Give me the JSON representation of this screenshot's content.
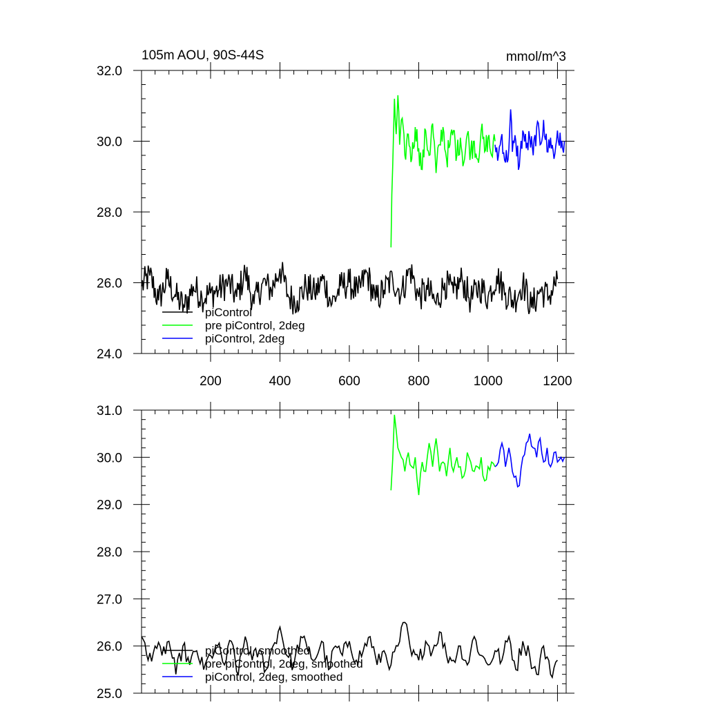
{
  "chart_data": [
    {
      "type": "line",
      "title": "105m AOU, 90S-44S",
      "units": "mmol/m^3",
      "xlabel": "",
      "ylabel": "",
      "xlim": [
        1,
        1225
      ],
      "ylim": [
        24.0,
        32.0
      ],
      "xticks": [
        200,
        400,
        600,
        800,
        1000,
        1200
      ],
      "xtick_labels": [
        "200",
        "400",
        "600",
        "800",
        "1000",
        "1200"
      ],
      "yticks": [
        24.0,
        26.0,
        28.0,
        30.0,
        32.0
      ],
      "ytick_labels": [
        "24.0",
        "26.0",
        "28.0",
        "30.0",
        "32.0"
      ],
      "legend_position": "bottom-left",
      "series": [
        {
          "name": "piControl",
          "color": "#000000",
          "x": [
            1,
            25,
            50,
            75,
            100,
            125,
            150,
            175,
            200,
            225,
            250,
            275,
            300,
            325,
            350,
            375,
            400,
            425,
            450,
            475,
            500,
            525,
            550,
            575,
            600,
            625,
            650,
            675,
            700,
            725,
            750,
            775,
            800,
            825,
            850,
            875,
            900,
            925,
            950,
            975,
            1000,
            1025,
            1050,
            1075,
            1100,
            1125,
            1150,
            1175,
            1200
          ],
          "values": [
            25.9,
            26.2,
            25.5,
            26.1,
            25.6,
            25.3,
            25.9,
            25.6,
            25.7,
            25.8,
            26.0,
            25.6,
            26.3,
            25.4,
            26.0,
            25.8,
            26.4,
            25.6,
            25.5,
            25.9,
            25.7,
            26.1,
            25.4,
            25.9,
            26.0,
            25.7,
            26.3,
            25.5,
            25.8,
            26.1,
            25.7,
            26.4,
            25.6,
            25.8,
            25.4,
            26.0,
            25.7,
            26.1,
            25.5,
            25.9,
            25.6,
            26.2,
            25.7,
            25.5,
            26.0,
            25.3,
            25.8,
            25.6,
            26.1
          ]
        },
        {
          "name": "pre piControl, 2deg",
          "color": "#00ff00",
          "x": [
            720,
            725,
            730,
            735,
            740,
            745,
            750,
            760,
            770,
            780,
            790,
            800,
            810,
            820,
            830,
            840,
            850,
            860,
            870,
            880,
            890,
            900,
            910,
            920,
            930,
            940,
            950,
            960,
            970,
            980,
            990,
            1000,
            1010,
            1020
          ],
          "values": [
            27.0,
            29.3,
            31.2,
            30.2,
            31.3,
            29.9,
            30.6,
            29.6,
            30.2,
            29.5,
            30.4,
            29.8,
            29.2,
            30.3,
            29.6,
            30.5,
            29.1,
            29.9,
            30.4,
            29.5,
            29.9,
            30.3,
            29.6,
            30.1,
            29.4,
            30.2,
            29.7,
            30.0,
            29.5,
            30.3,
            29.7,
            30.1,
            29.6,
            30.0
          ]
        },
        {
          "name": "piControl, 2deg",
          "color": "#0000ff",
          "x": [
            1020,
            1030,
            1040,
            1050,
            1060,
            1065,
            1070,
            1080,
            1090,
            1100,
            1110,
            1120,
            1130,
            1140,
            1150,
            1160,
            1170,
            1180,
            1190,
            1200,
            1210,
            1220
          ],
          "values": [
            29.9,
            29.6,
            30.2,
            29.4,
            29.8,
            30.9,
            29.7,
            30.0,
            29.3,
            30.3,
            29.8,
            30.1,
            29.6,
            30.4,
            29.9,
            30.6,
            29.7,
            30.1,
            29.5,
            30.3,
            29.8,
            30.0
          ]
        }
      ]
    },
    {
      "type": "line",
      "title": "",
      "xlabel": "",
      "ylabel": "",
      "xlim": [
        1,
        1225
      ],
      "ylim": [
        25.0,
        31.0
      ],
      "xticks": [
        200,
        400,
        600,
        800,
        1000,
        1200
      ],
      "yticks": [
        25.0,
        26.0,
        27.0,
        28.0,
        29.0,
        30.0,
        31.0
      ],
      "ytick_labels": [
        "25.0",
        "26.0",
        "27.0",
        "28.0",
        "29.0",
        "30.0",
        "31.0"
      ],
      "legend_position": "bottom-left",
      "series": [
        {
          "name": "piControl, smoothed",
          "color": "#000000",
          "x": [
            1,
            20,
            40,
            60,
            80,
            100,
            120,
            140,
            160,
            180,
            200,
            220,
            240,
            260,
            280,
            300,
            320,
            340,
            360,
            380,
            400,
            420,
            440,
            460,
            480,
            500,
            520,
            540,
            560,
            580,
            600,
            620,
            640,
            660,
            680,
            700,
            720,
            740,
            760,
            780,
            800,
            820,
            840,
            860,
            880,
            900,
            920,
            940,
            960,
            980,
            1000,
            1020,
            1040,
            1060,
            1080,
            1100,
            1120,
            1140,
            1160,
            1180,
            1200
          ],
          "values": [
            26.2,
            25.7,
            26.0,
            25.8,
            26.1,
            25.4,
            26.0,
            25.6,
            25.9,
            25.5,
            25.8,
            26.0,
            25.6,
            26.1,
            25.4,
            26.2,
            25.7,
            25.9,
            25.5,
            26.0,
            26.4,
            25.8,
            25.6,
            26.2,
            25.9,
            25.7,
            26.1,
            25.5,
            26.0,
            25.8,
            26.1,
            25.7,
            25.9,
            26.2,
            25.6,
            25.9,
            25.6,
            26.0,
            26.5,
            25.8,
            25.7,
            26.1,
            25.9,
            26.3,
            25.8,
            25.7,
            26.0,
            25.6,
            26.2,
            25.8,
            25.6,
            25.9,
            25.7,
            26.2,
            25.5,
            26.1,
            25.8,
            25.4,
            26.0,
            25.4,
            25.7
          ]
        },
        {
          "name": "pre piControl, 2deg, smoothed",
          "color": "#00ff00",
          "x": [
            720,
            730,
            740,
            750,
            760,
            770,
            780,
            790,
            800,
            810,
            820,
            830,
            840,
            850,
            860,
            870,
            880,
            890,
            900,
            910,
            920,
            930,
            940,
            950,
            960,
            970,
            980,
            990,
            1000,
            1010,
            1020
          ],
          "values": [
            29.3,
            30.9,
            30.2,
            30.0,
            29.7,
            30.1,
            29.8,
            30.0,
            29.2,
            29.9,
            29.7,
            30.3,
            29.8,
            30.4,
            29.7,
            29.9,
            29.6,
            30.2,
            29.7,
            30.0,
            29.8,
            29.6,
            30.1,
            29.9,
            29.7,
            29.8,
            30.0,
            29.5,
            29.8,
            29.9,
            29.8
          ]
        },
        {
          "name": "piControl, 2deg, smoothed",
          "color": "#0000ff",
          "x": [
            1020,
            1030,
            1040,
            1050,
            1060,
            1070,
            1080,
            1090,
            1100,
            1110,
            1120,
            1130,
            1140,
            1150,
            1160,
            1170,
            1180,
            1190,
            1200,
            1210,
            1220
          ],
          "values": [
            29.8,
            29.9,
            30.3,
            29.8,
            30.2,
            29.7,
            29.6,
            29.4,
            30.0,
            30.3,
            30.5,
            30.2,
            30.0,
            30.4,
            29.9,
            30.2,
            29.8,
            30.1,
            29.9,
            30.0,
            30.0
          ]
        }
      ]
    }
  ]
}
